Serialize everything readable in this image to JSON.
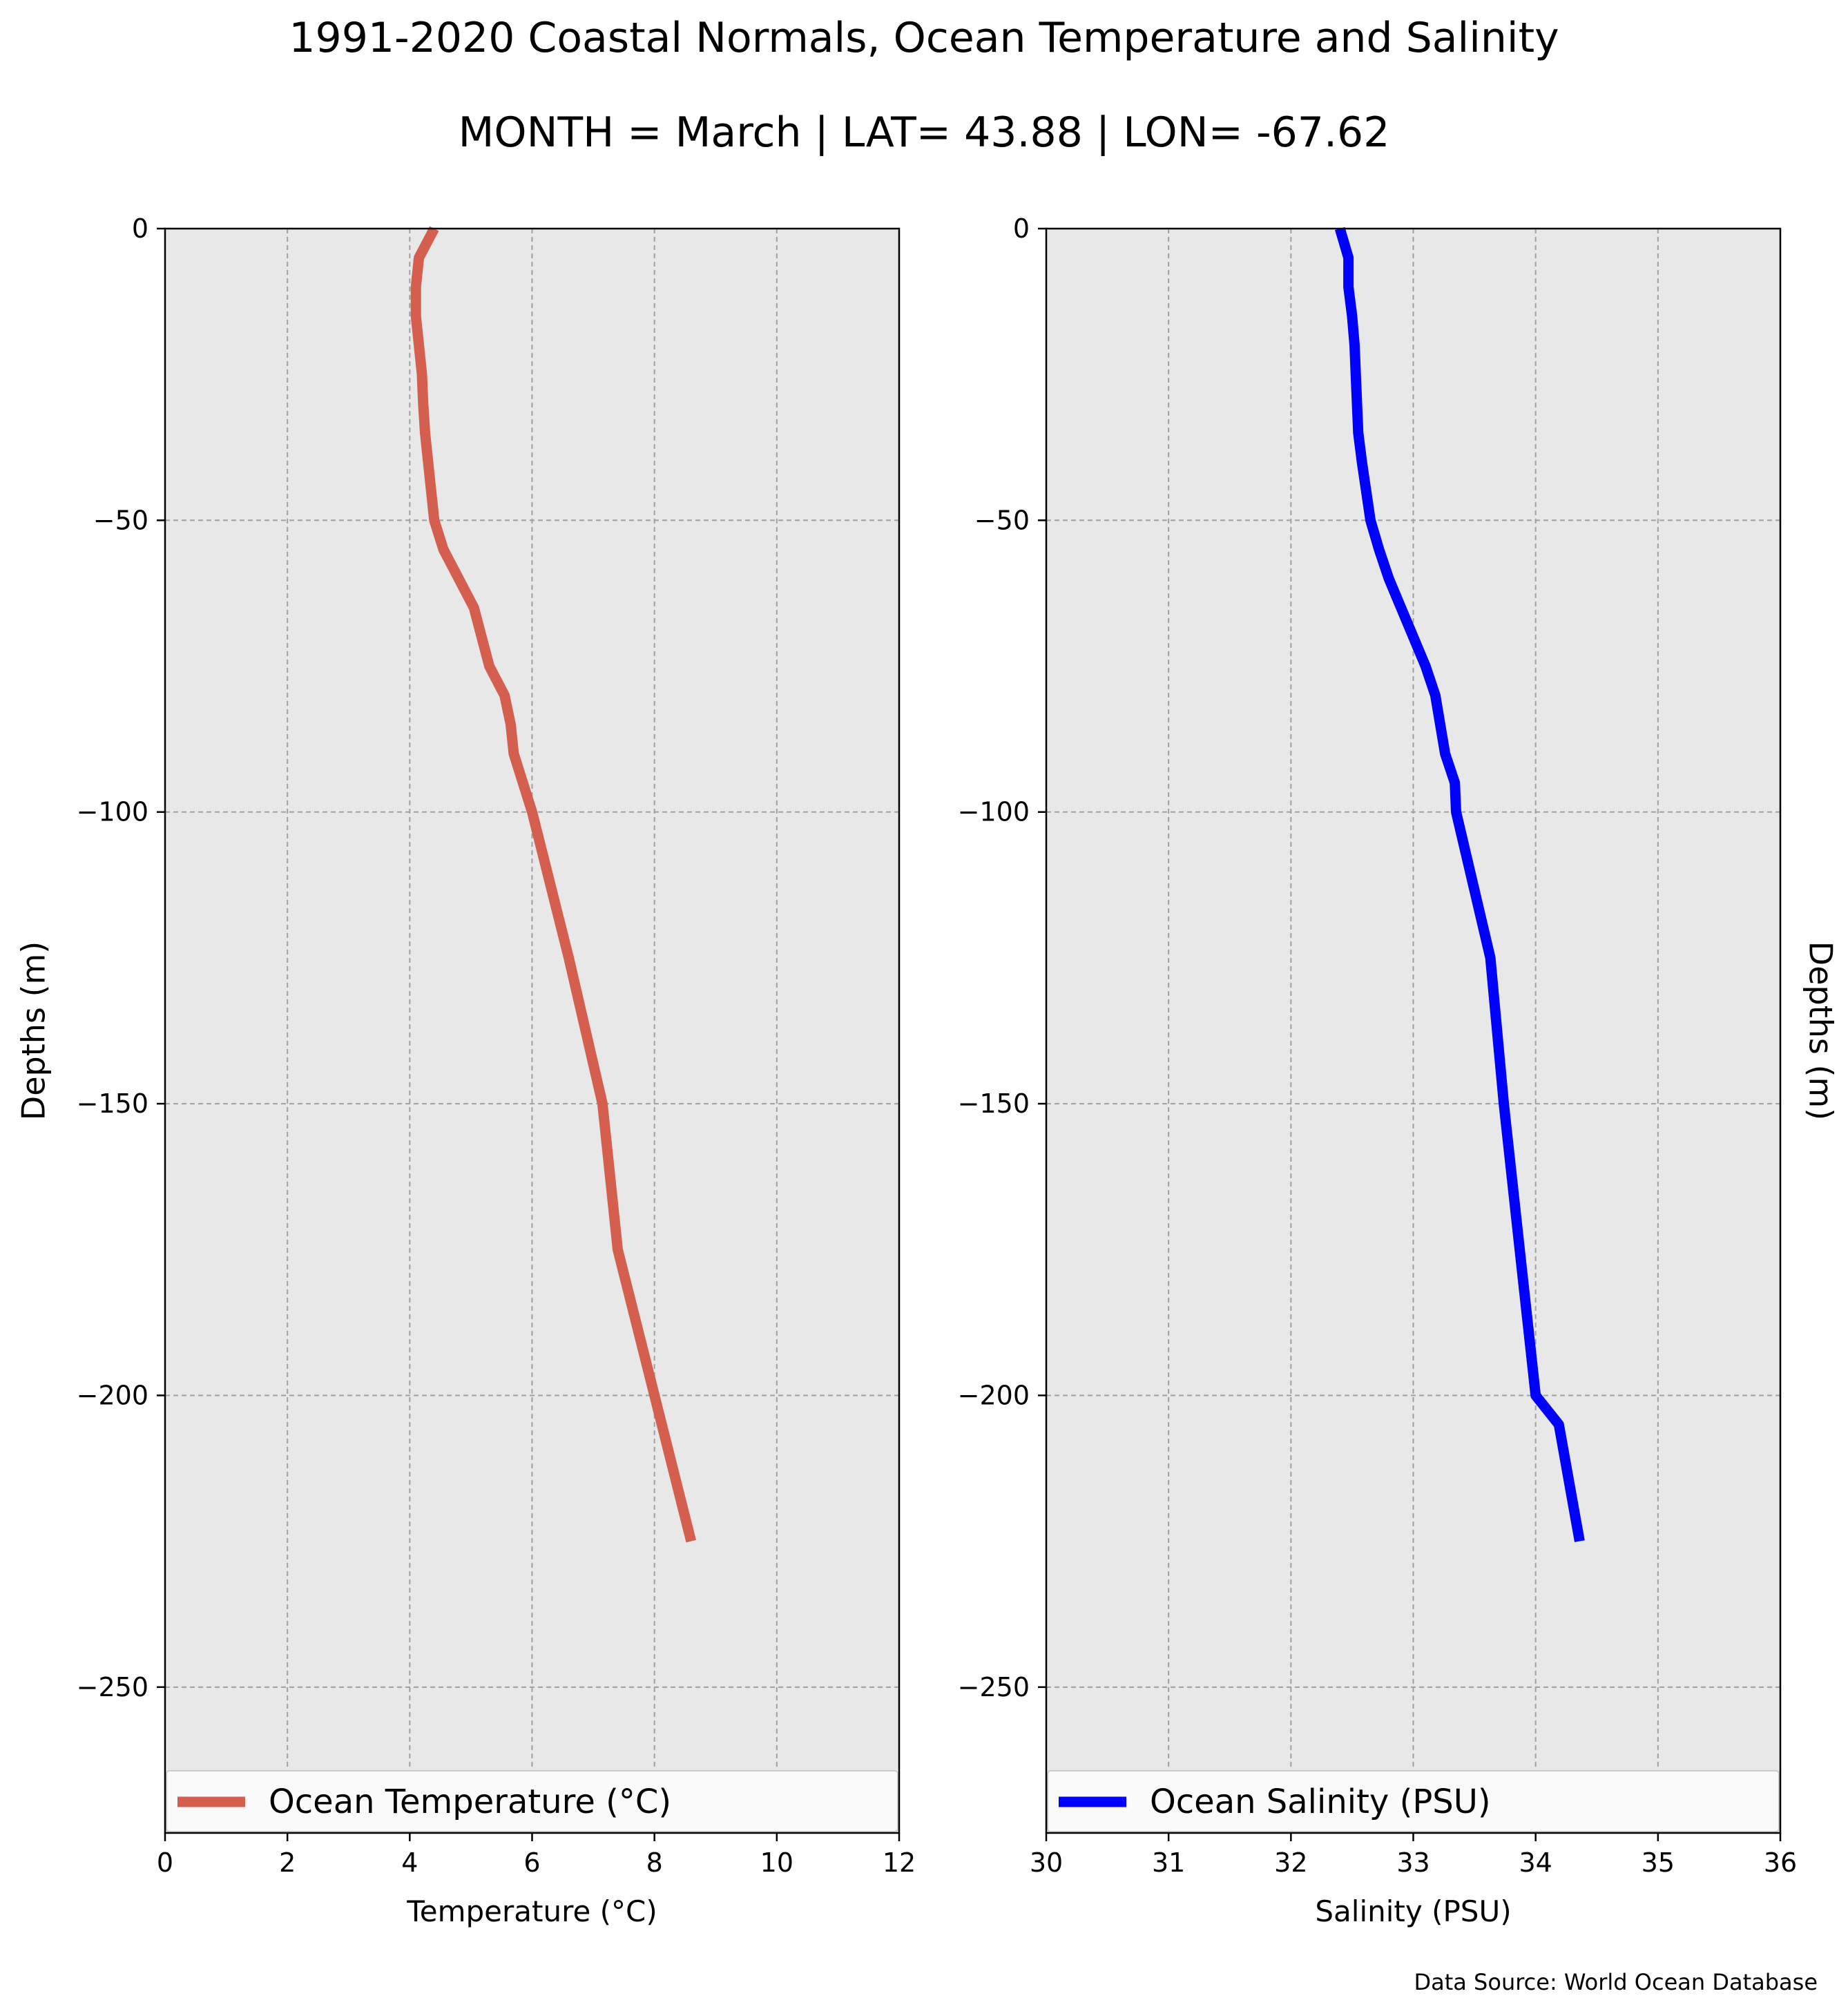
{
  "figure": {
    "title": "1991-2020 Coastal Normals, Ocean Temperature and Salinity",
    "subtitle": "MONTH = March | LAT= 43.88 | LON= -67.62",
    "source": "Data Source: World Ocean Database"
  },
  "chart_data": [
    {
      "type": "line",
      "xlabel": "Temperature (°C)",
      "ylabel": "Depths (m)",
      "xlim": [
        0,
        12
      ],
      "ylim": [
        -275,
        0
      ],
      "xticks": [
        0,
        2,
        4,
        6,
        8,
        10,
        12
      ],
      "yticks": [
        0,
        -50,
        -100,
        -150,
        -200,
        -250
      ],
      "grid": true,
      "legend": "bottom",
      "series": [
        {
          "name": "Ocean Temperature (°C)",
          "color": "#d55f4f",
          "x": [
            4.4,
            4.15,
            4.1,
            4.1,
            4.15,
            4.2,
            4.22,
            4.25,
            4.3,
            4.4,
            4.55,
            4.8,
            5.05,
            5.3,
            5.55,
            5.65,
            5.7,
            5.85,
            6.0,
            6.6,
            7.15,
            7.4,
            8.0,
            8.6
          ],
          "y": [
            0,
            -5,
            -10,
            -15,
            -20,
            -25,
            -30,
            -35,
            -40,
            -50,
            -55,
            -60,
            -65,
            -75,
            -80,
            -85,
            -90,
            -95,
            -100,
            -125,
            -150,
            -175,
            -200,
            -225
          ]
        }
      ]
    },
    {
      "type": "line",
      "xlabel": "Salinity (PSU)",
      "ylabel": "Depths (m)",
      "xlim": [
        30,
        36
      ],
      "ylim": [
        -275,
        0
      ],
      "xticks": [
        30,
        31,
        32,
        33,
        34,
        35,
        36
      ],
      "yticks": [
        0,
        -50,
        -100,
        -150,
        -200,
        -250
      ],
      "grid": true,
      "legend": "bottom",
      "series": [
        {
          "name": "Ocean Salinity (PSU)",
          "color": "#0000ff",
          "x": [
            32.4,
            32.47,
            32.47,
            32.5,
            32.52,
            32.53,
            32.54,
            32.55,
            32.58,
            32.65,
            32.72,
            32.8,
            32.9,
            33.0,
            33.1,
            33.18,
            33.22,
            33.26,
            33.34,
            33.35,
            33.63,
            33.74,
            33.87,
            34.0,
            34.19,
            34.36
          ],
          "y": [
            0,
            -5,
            -10,
            -15,
            -20,
            -25,
            -30,
            -35,
            -40,
            -50,
            -55,
            -60,
            -65,
            -70,
            -75,
            -80,
            -85,
            -90,
            -95,
            -100,
            -125,
            -150,
            -175,
            -200,
            -205,
            -225
          ]
        }
      ]
    }
  ]
}
